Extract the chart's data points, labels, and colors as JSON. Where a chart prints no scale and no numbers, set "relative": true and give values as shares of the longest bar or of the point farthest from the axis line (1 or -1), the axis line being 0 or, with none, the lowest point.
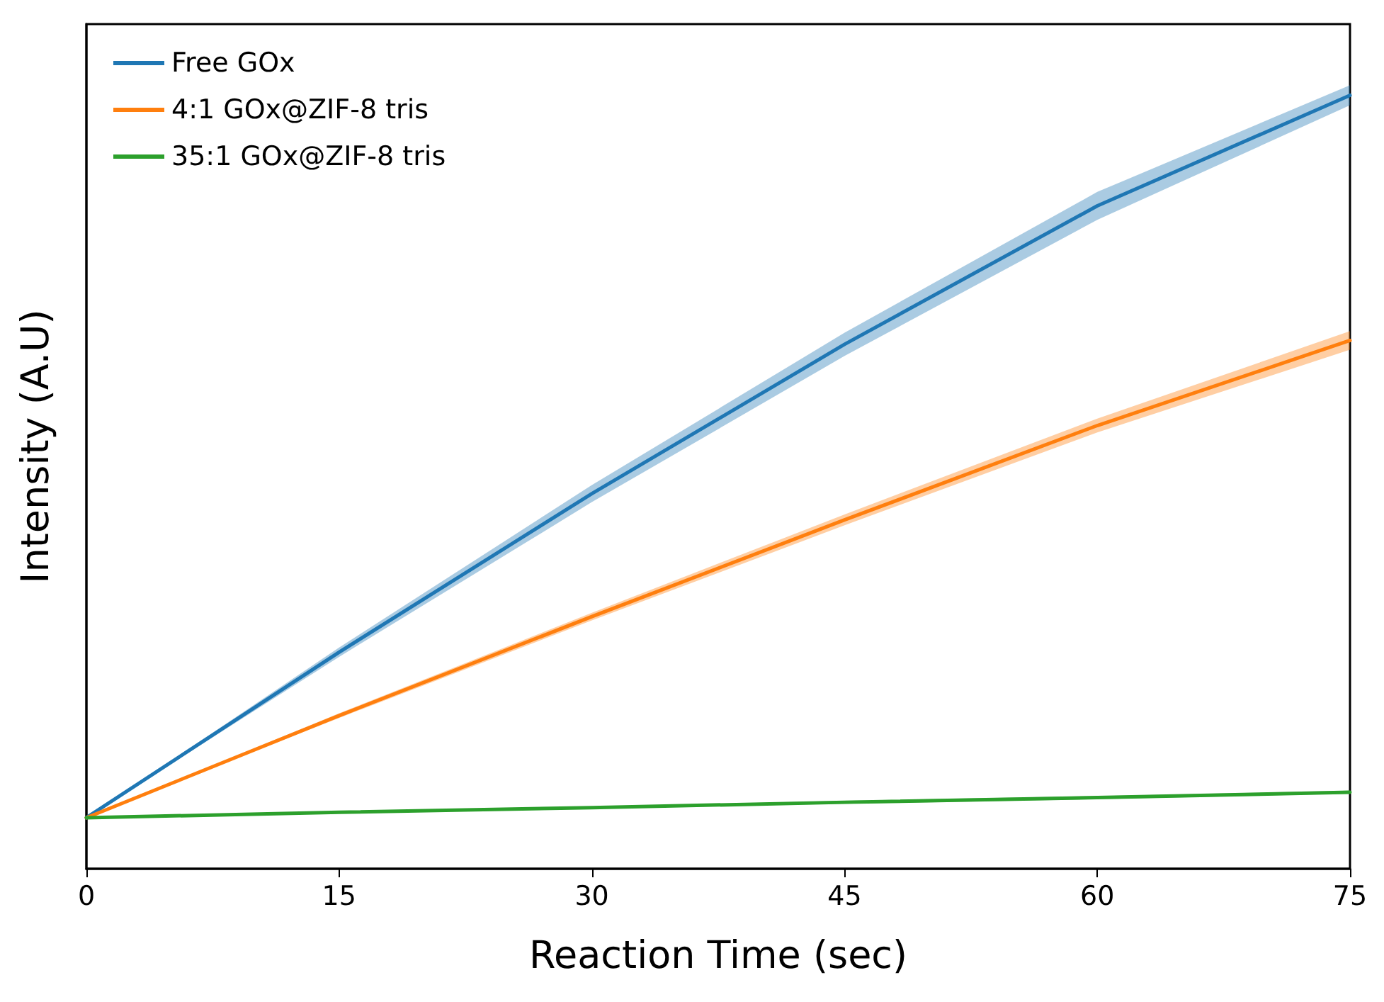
{
  "chart_data": {
    "type": "line",
    "xlabel": "Reaction Time (sec)",
    "ylabel": "Intensity (A.U)",
    "relative": true,
    "x": [
      0,
      15,
      30,
      45,
      60,
      75
    ],
    "xlim": [
      0,
      75
    ],
    "xticks": [
      0,
      15,
      30,
      45,
      60,
      75
    ],
    "series": [
      {
        "name": "Free GOx",
        "color": "#1f77b4",
        "values": [
          0.066,
          0.28,
          0.485,
          0.678,
          0.857,
          1.0
        ],
        "lower": [
          0.066,
          0.274,
          0.474,
          0.663,
          0.839,
          0.987
        ],
        "upper": [
          0.066,
          0.286,
          0.496,
          0.693,
          0.875,
          1.013
        ]
      },
      {
        "name": "4:1 GOx@ZIF-8 tris",
        "color": "#ff7f0e",
        "values": [
          0.066,
          0.198,
          0.326,
          0.451,
          0.573,
          0.683
        ],
        "lower": [
          0.066,
          0.195,
          0.321,
          0.444,
          0.564,
          0.671
        ],
        "upper": [
          0.066,
          0.201,
          0.331,
          0.458,
          0.582,
          0.695
        ]
      },
      {
        "name": "35:1 GOx@ZIF-8 tris",
        "color": "#2ca02c",
        "values": [
          0.066,
          0.073,
          0.079,
          0.086,
          0.092,
          0.099
        ],
        "lower": [
          0.066,
          0.072,
          0.078,
          0.084,
          0.09,
          0.097
        ],
        "upper": [
          0.066,
          0.074,
          0.08,
          0.088,
          0.094,
          0.101
        ]
      }
    ],
    "legend": "top left",
    "grid": false,
    "marker": "none",
    "line_style": "solid"
  }
}
